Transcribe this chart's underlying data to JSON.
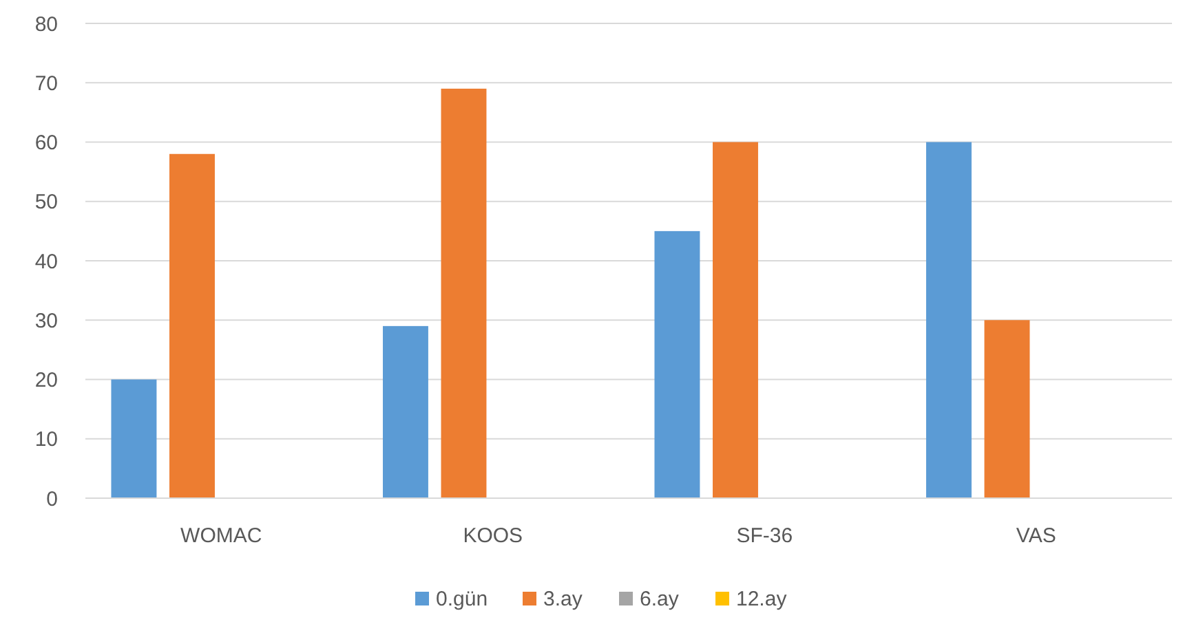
{
  "chart_data": {
    "type": "bar",
    "categories": [
      "WOMAC",
      "KOOS",
      "SF-36",
      "VAS"
    ],
    "series": [
      {
        "name": "0.gün",
        "color": "#5b9bd5",
        "values": [
          20,
          29,
          45,
          60
        ]
      },
      {
        "name": "3.ay",
        "color": "#ed7d31",
        "values": [
          58,
          69,
          60,
          30
        ]
      },
      {
        "name": "6.ay",
        "color": "#a5a5a5",
        "values": [
          null,
          null,
          null,
          null
        ]
      },
      {
        "name": "12.ay",
        "color": "#ffc000",
        "values": [
          null,
          null,
          null,
          null
        ]
      }
    ],
    "ylim": [
      0,
      80
    ],
    "yticks": [
      0,
      10,
      20,
      30,
      40,
      50,
      60,
      70,
      80
    ],
    "grid": "y",
    "legend": "bottom"
  }
}
